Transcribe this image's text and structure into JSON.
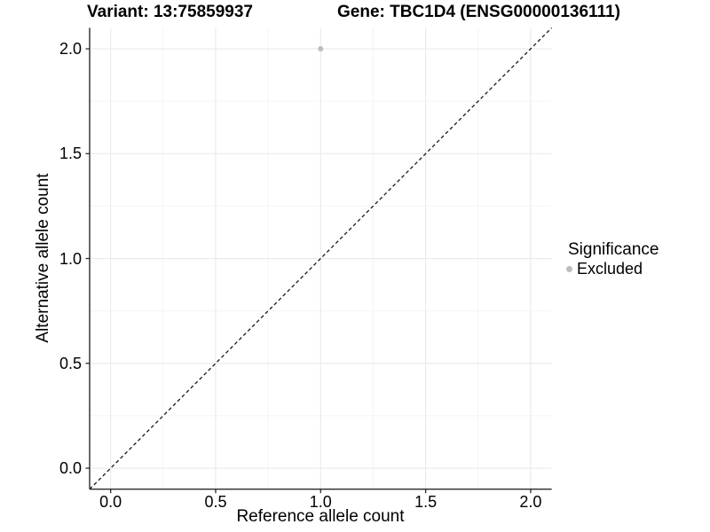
{
  "chart_data": {
    "type": "scatter",
    "title_left": "Variant: 13:75859937",
    "title_right": "Gene: TBC1D4 (ENSG00000136111)",
    "xlabel": "Reference allele count",
    "ylabel": "Alternative allele count",
    "xlim": [
      -0.1,
      2.1
    ],
    "ylim": [
      -0.1,
      2.1
    ],
    "x_ticks": [
      0.0,
      0.5,
      1.0,
      1.5,
      2.0
    ],
    "x_tick_labels": [
      "0.0",
      "0.5",
      "1.0",
      "1.5",
      "2.0"
    ],
    "y_ticks": [
      0.0,
      0.5,
      1.0,
      1.5,
      2.0
    ],
    "y_tick_labels": [
      "0.0",
      "0.5",
      "1.0",
      "1.5",
      "2.0"
    ],
    "x_minor_ticks": [
      0.25,
      0.75,
      1.25,
      1.75
    ],
    "y_minor_ticks": [
      0.25,
      0.75,
      1.25,
      1.75
    ],
    "grid": true,
    "reference_line": {
      "type": "identity",
      "style": "dashed",
      "color": "#1a1a1a"
    },
    "series": [
      {
        "name": "Excluded",
        "color": "#bdbdbd",
        "points": [
          {
            "x": 1.0,
            "y": 2.0
          }
        ]
      }
    ],
    "legend": {
      "position": "right",
      "title": "Significance",
      "entries": [
        {
          "label": "Excluded",
          "color": "#bdbdbd",
          "marker": "circle"
        }
      ]
    },
    "colors": {
      "grid_major": "#e9e9e9",
      "grid_minor": "#f4f4f4",
      "axis": "#2a2a2a",
      "text": "#000000"
    }
  }
}
